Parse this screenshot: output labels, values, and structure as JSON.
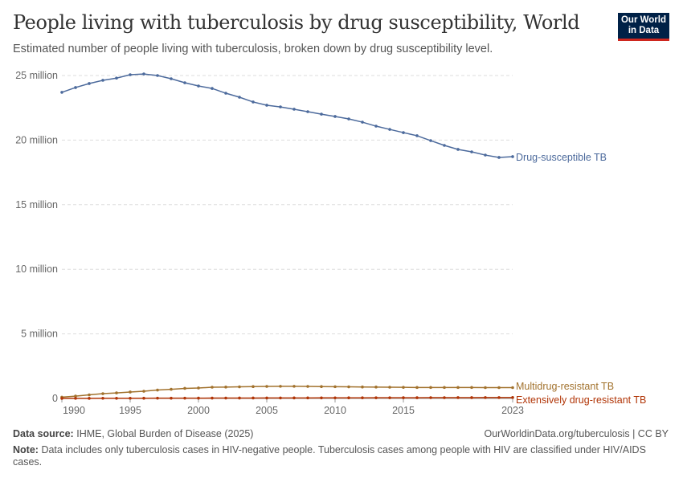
{
  "title": "People living with tuberculosis by drug susceptibility, World",
  "subtitle": "Estimated number of people living with tuberculosis, broken down by drug susceptibility level.",
  "logo": "Our World in Data",
  "footer": {
    "source_label": "Data source:",
    "source": "IHME, Global Burden of Disease (2025)",
    "url": "OurWorldinData.org/tuberculosis | CC BY",
    "note_label": "Note:",
    "note": "Data includes only tuberculosis cases in HIV-negative people. Tuberculosis cases among people with HIV are classified under HIV/AIDS cases."
  },
  "chart_data": {
    "type": "line",
    "x": [
      1990,
      1991,
      1992,
      1993,
      1994,
      1995,
      1996,
      1997,
      1998,
      1999,
      2000,
      2001,
      2002,
      2003,
      2004,
      2005,
      2006,
      2007,
      2008,
      2009,
      2010,
      2011,
      2012,
      2013,
      2014,
      2015,
      2016,
      2017,
      2018,
      2019,
      2020,
      2021,
      2022,
      2023
    ],
    "xticks": [
      1990,
      1995,
      2000,
      2005,
      2010,
      2015,
      2023
    ],
    "xtick_labels": [
      "1990",
      "1995",
      "2000",
      "2005",
      "2010",
      "2015",
      "2023"
    ],
    "yticks": [
      0,
      5000000,
      10000000,
      15000000,
      20000000,
      25000000
    ],
    "ytick_labels": [
      "0",
      "5 million",
      "10 million",
      "15 million",
      "20 million",
      "25 million"
    ],
    "ylim": [
      0,
      25000000
    ],
    "grid": "horizontal dashed",
    "legend": "right-end labels",
    "series": [
      {
        "name": "Drug-susceptible TB",
        "color": "#4c6a9c",
        "values": [
          23700000,
          24070000,
          24380000,
          24630000,
          24800000,
          25060000,
          25120000,
          25000000,
          24750000,
          24440000,
          24190000,
          24000000,
          23630000,
          23320000,
          22950000,
          22700000,
          22570000,
          22390000,
          22200000,
          22010000,
          21830000,
          21640000,
          21390000,
          21080000,
          20830000,
          20580000,
          20340000,
          19960000,
          19590000,
          19280000,
          19090000,
          18840000,
          18660000,
          18720000
        ]
      },
      {
        "name": "Multidrug-resistant TB",
        "color": "#a2722d",
        "values": [
          100000,
          180000,
          280000,
          370000,
          430000,
          500000,
          560000,
          650000,
          710000,
          780000,
          810000,
          870000,
          880000,
          900000,
          920000,
          930000,
          940000,
          940000,
          930000,
          920000,
          910000,
          900000,
          890000,
          880000,
          870000,
          860000,
          850000,
          850000,
          850000,
          850000,
          850000,
          840000,
          840000,
          840000
        ]
      },
      {
        "name": "Extensively drug-resistant TB",
        "color": "#b13507",
        "values": [
          5000,
          8000,
          10000,
          12000,
          14000,
          16000,
          18000,
          20000,
          22000,
          24000,
          26000,
          28000,
          30000,
          32000,
          34000,
          36000,
          38000,
          40000,
          42000,
          44000,
          46000,
          48000,
          50000,
          52000,
          54000,
          56000,
          58000,
          60000,
          62000,
          64000,
          66000,
          68000,
          70000,
          72000
        ]
      }
    ]
  }
}
